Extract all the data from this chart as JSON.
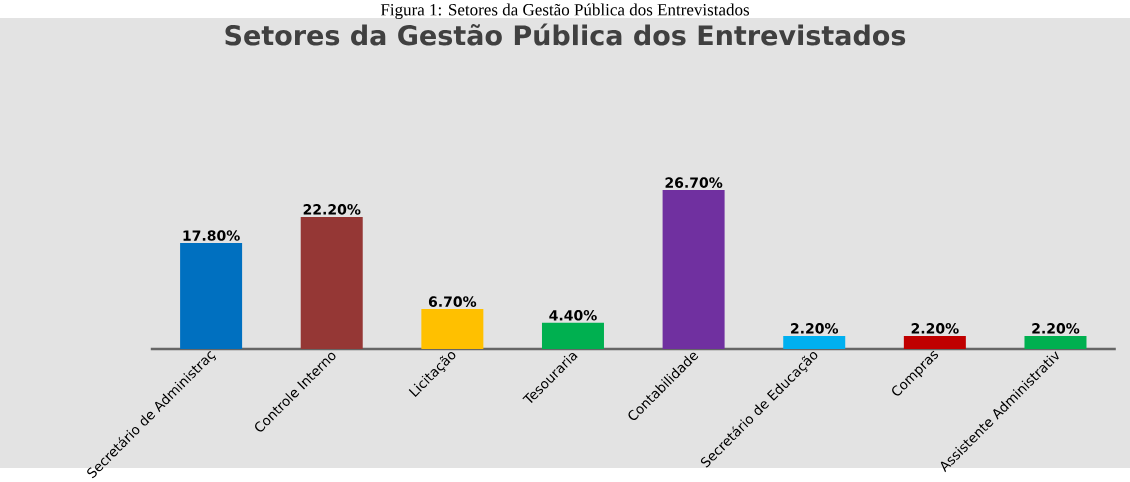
{
  "chart_data": {
    "type": "bar",
    "title": "Setores da Gestão Pública dos Entrevistados",
    "annotations": [
      "Figura 1: Setores da Gestão Pública dos Entrevistados"
    ],
    "categories": [
      "Secretário de Administraç",
      "Controle Interno",
      "Licitação",
      "Tesouraria",
      "Contabilidade",
      "Secretário de Educação",
      "Compras",
      "Assistente Administrativ"
    ],
    "values": [
      17.8,
      22.2,
      6.7,
      4.4,
      26.7,
      2.2,
      2.2,
      2.2
    ],
    "value_labels": [
      "17.80%",
      "22.20%",
      "6.70%",
      "4.40%",
      "26.70%",
      "2.20%",
      "2.20%",
      "2.20%"
    ],
    "colors": [
      "#0070c0",
      "#953735",
      "#ffc000",
      "#00b050",
      "#7030a0",
      "#00b0f0",
      "#c00000",
      "#00b050"
    ]
  }
}
